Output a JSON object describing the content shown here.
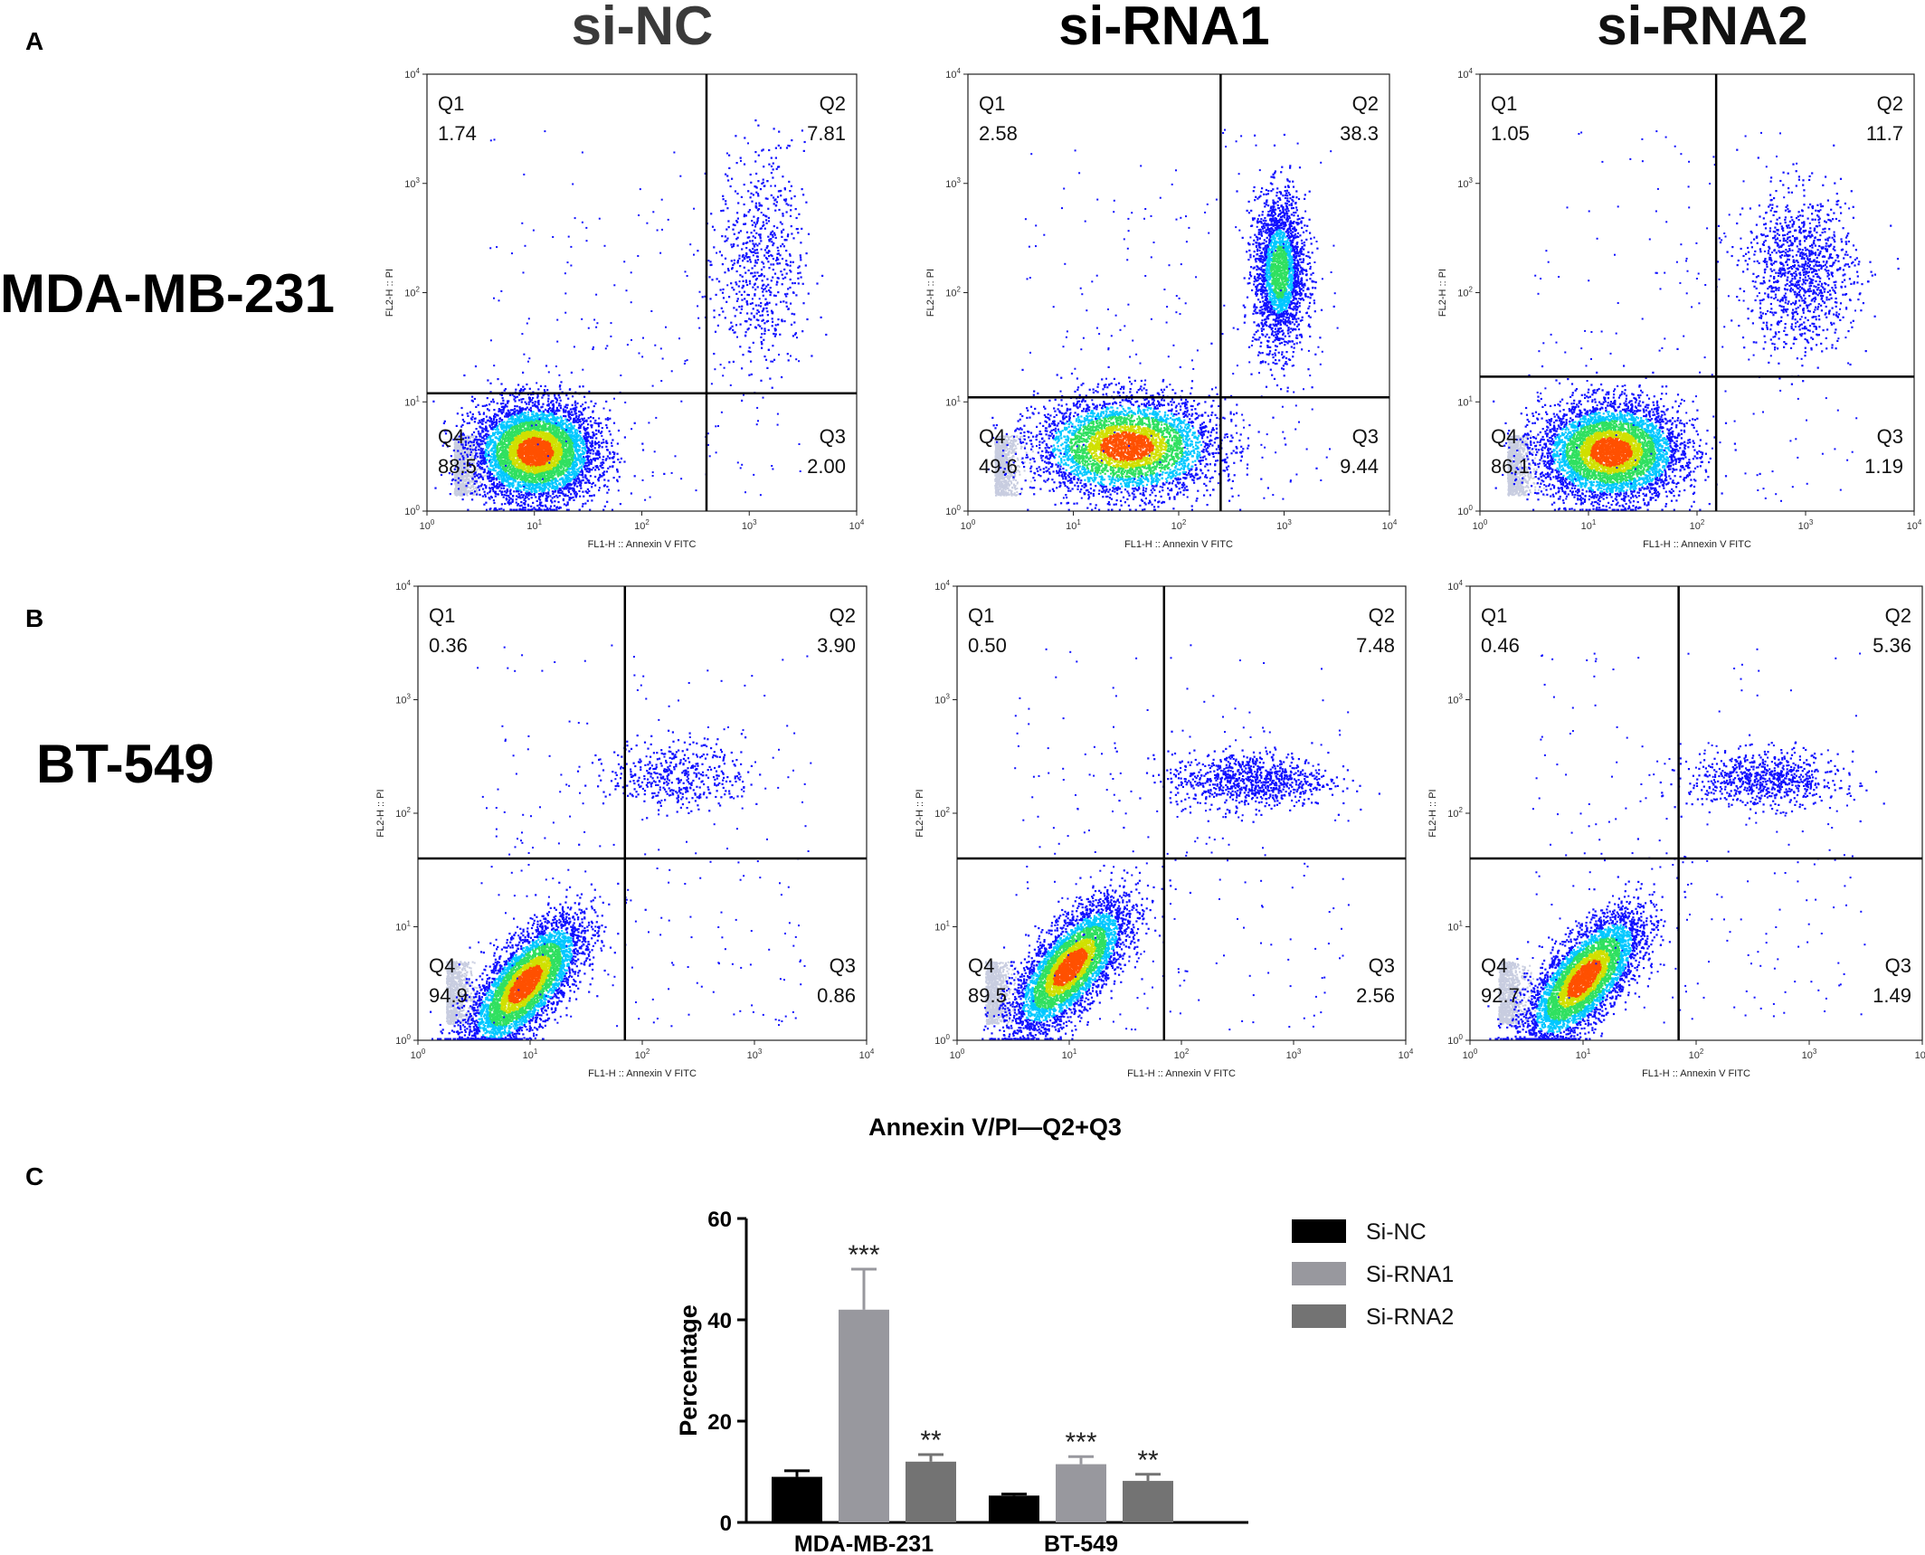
{
  "panels": {
    "a": {
      "letter": "A",
      "row_label": "MDA-MB-231"
    },
    "b": {
      "letter": "B",
      "row_label": "BT-549"
    },
    "c": {
      "letter": "C",
      "title": "Annexin V/PI—Q2+Q3"
    }
  },
  "columns": [
    {
      "label": "si-NC",
      "color": "#3a3a3a"
    },
    {
      "label": "si-RNA1",
      "color": "#000000"
    },
    {
      "label": "si-RNA2",
      "color": "#111111"
    }
  ],
  "flow_axes": {
    "xlabel": "FL1-H :: Annexin V FITC",
    "ylabel": "FL2-H :: PI",
    "ticks": [
      {
        "base": "10",
        "exp": "0"
      },
      {
        "base": "10",
        "exp": "1"
      },
      {
        "base": "10",
        "exp": "2"
      },
      {
        "base": "10",
        "exp": "3"
      },
      {
        "base": "10",
        "exp": "4"
      }
    ],
    "quadrant_names": [
      "Q1",
      "Q2",
      "Q3",
      "Q4"
    ],
    "scale": "log",
    "range": [
      1,
      10000
    ]
  },
  "chart_data": [
    {
      "type": "scatter",
      "name": "MDA-MB-231 si-NC",
      "gate": {
        "x": 400,
        "y": 12
      },
      "quadrants": {
        "Q1": "1.74",
        "Q2": "7.81",
        "Q3": "2.00",
        "Q4": "88.5"
      }
    },
    {
      "type": "scatter",
      "name": "MDA-MB-231 si-RNA1",
      "gate": {
        "x": 250,
        "y": 11
      },
      "quadrants": {
        "Q1": "2.58",
        "Q2": "38.3",
        "Q3": "9.44",
        "Q4": "49.6"
      }
    },
    {
      "type": "scatter",
      "name": "MDA-MB-231 si-RNA2",
      "gate": {
        "x": 150,
        "y": 17
      },
      "quadrants": {
        "Q1": "1.05",
        "Q2": "11.7",
        "Q3": "1.19",
        "Q4": "86.1"
      }
    },
    {
      "type": "scatter",
      "name": "BT-549 si-NC",
      "gate": {
        "x": 70,
        "y": 40
      },
      "quadrants": {
        "Q1": "0.36",
        "Q2": "3.90",
        "Q3": "0.86",
        "Q4": "94.9"
      }
    },
    {
      "type": "scatter",
      "name": "BT-549 si-RNA1",
      "gate": {
        "x": 70,
        "y": 40
      },
      "quadrants": {
        "Q1": "0.50",
        "Q2": "7.48",
        "Q3": "2.56",
        "Q4": "89.5"
      }
    },
    {
      "type": "scatter",
      "name": "BT-549 si-RNA2",
      "gate": {
        "x": 70,
        "y": 40
      },
      "quadrants": {
        "Q1": "0.46",
        "Q2": "5.36",
        "Q3": "1.49",
        "Q4": "92.7"
      }
    },
    {
      "type": "bar",
      "title": "Annexin V/PI—Q2+Q3",
      "ylabel": "Percentage",
      "xlabel": "",
      "ylim": [
        0,
        60
      ],
      "yticks": [
        "0",
        "20",
        "40",
        "60"
      ],
      "categories": [
        "MDA-MB-231",
        "BT-549"
      ],
      "legend_position": "right",
      "series": [
        {
          "name": "Si-NC",
          "color": "#000000",
          "values": [
            9.0,
            5.3
          ],
          "errors": [
            1.2,
            0.3
          ],
          "sig": [
            "",
            ""
          ]
        },
        {
          "name": "Si-RNA1",
          "color": "#98989e",
          "values": [
            42.0,
            11.5
          ],
          "errors": [
            8.0,
            1.5
          ],
          "sig": [
            "***",
            "***"
          ]
        },
        {
          "name": "Si-RNA2",
          "color": "#737373",
          "values": [
            12.0,
            8.2
          ],
          "errors": [
            1.4,
            1.3
          ],
          "sig": [
            "**",
            "**"
          ]
        }
      ]
    }
  ]
}
